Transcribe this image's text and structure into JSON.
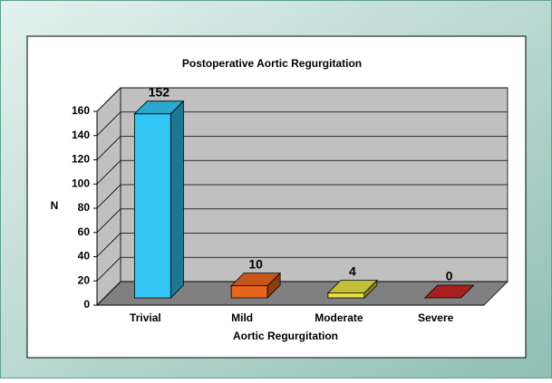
{
  "chart_data": {
    "type": "bar3d",
    "title": "Postoperative Aortic Regurgitation",
    "x_label": "Aortic Regurgitation",
    "y_label": "N",
    "categories": [
      "Trivial",
      "Mild",
      "Moderate",
      "Severe"
    ],
    "values": [
      152,
      10,
      4,
      0
    ],
    "colors": [
      "#33c6f4",
      "#e8651e",
      "#e6e040",
      "#c42424"
    ],
    "ylim": [
      0,
      160
    ],
    "yticks": [
      0,
      20,
      40,
      60,
      80,
      100,
      120,
      140,
      160
    ],
    "grid": true
  }
}
